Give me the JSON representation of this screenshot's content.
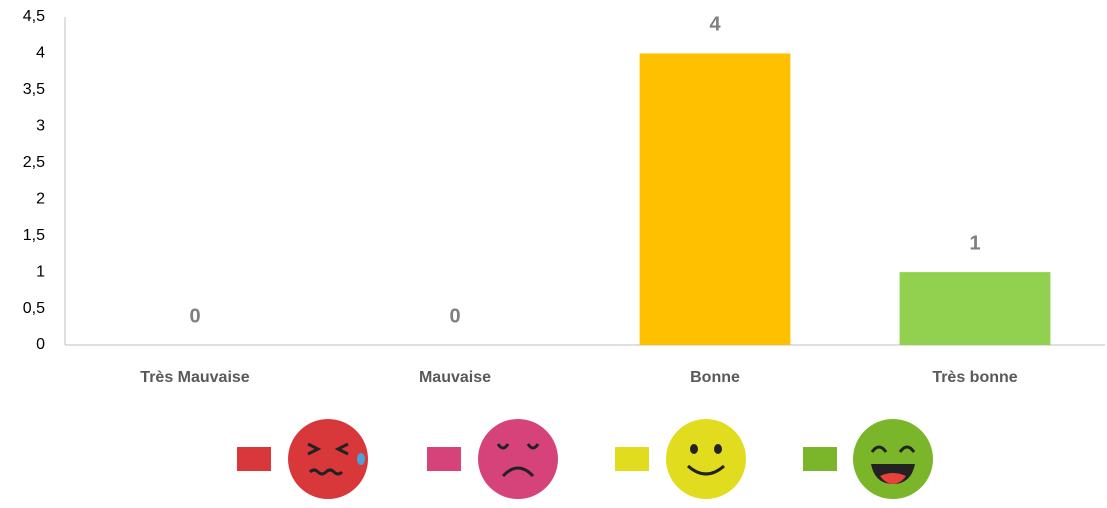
{
  "chart_data": {
    "type": "bar",
    "categories": [
      "Très Mauvaise",
      "Mauvaise",
      "Bonne",
      "Très bonne"
    ],
    "values": [
      0,
      0,
      4,
      1
    ],
    "colors": [
      "#d9383a",
      "#d6427a",
      "#ffc000",
      "#92d050"
    ],
    "legend_colors": [
      "#d9383a",
      "#d6427a",
      "#e2dc1e",
      "#7ab52a"
    ],
    "ylim": [
      0,
      4.5
    ],
    "yticks": [
      0,
      {
        "value": 0.5,
        "label": "0,5"
      },
      1,
      {
        "value": 1.5,
        "label": "1,5"
      },
      2,
      {
        "value": 2.5,
        "label": "2,5"
      },
      3,
      {
        "value": 3.5,
        "label": "3,5"
      },
      4,
      {
        "value": 4.5,
        "label": "4,5"
      }
    ],
    "grid": false
  }
}
